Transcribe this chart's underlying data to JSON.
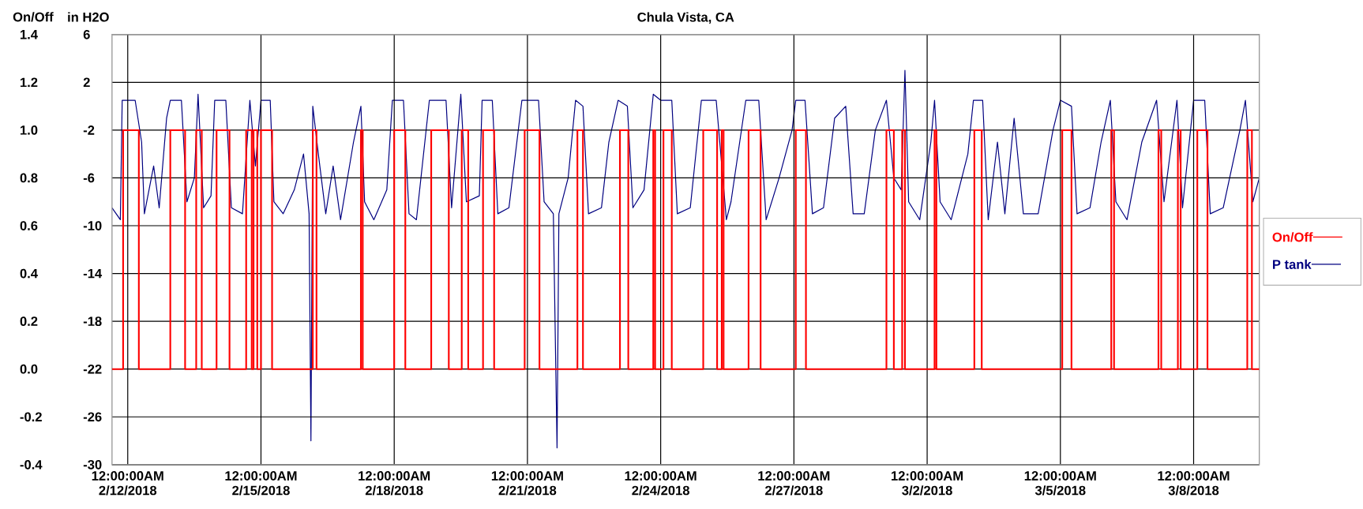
{
  "chart_data": {
    "type": "line",
    "title": "Chula Vista, CA",
    "ylabel": "On/Off",
    "y2label": "in H2O",
    "xlim": [
      "2018-02-11T15:30",
      "2018-03-09T11:30"
    ],
    "xticks": [
      {
        "value": "2018-02-12",
        "label": "12:00:00AM 2/12/2018"
      },
      {
        "value": "2018-02-15",
        "label": "12:00:00AM 2/15/2018"
      },
      {
        "value": "2018-02-18",
        "label": "12:00:00AM 2/18/2018"
      },
      {
        "value": "2018-02-21",
        "label": "12:00:00AM 2/21/2018"
      },
      {
        "value": "2018-02-24",
        "label": "12:00:00AM 2/24/2018"
      },
      {
        "value": "2018-02-27",
        "label": "12:00:00AM 2/27/2018"
      },
      {
        "value": "2018-03-02",
        "label": "12:00:00AM 3/2/2018"
      },
      {
        "value": "2018-03-05",
        "label": "12:00:00AM 3/5/2018"
      },
      {
        "value": "2018-03-08",
        "label": "12:00:00AM 3/8/2018"
      }
    ],
    "ylim": [
      -0.4,
      1.4
    ],
    "yticks": [
      {
        "value": -0.4,
        "label": "-0.4"
      },
      {
        "value": -0.2,
        "label": "-0.2"
      },
      {
        "value": 0,
        "label": "0.0"
      },
      {
        "value": 0.2,
        "label": "0.2"
      },
      {
        "value": 0.4,
        "label": "0.4"
      },
      {
        "value": 0.6,
        "label": "0.6"
      },
      {
        "value": 0.8,
        "label": "0.8"
      },
      {
        "value": 1,
        "label": "1.0"
      },
      {
        "value": 1.2,
        "label": "1.2"
      },
      {
        "value": 1.4,
        "label": "1.4"
      }
    ],
    "y2lim": [
      -30,
      6
    ],
    "y2ticks": [
      -30,
      -26,
      -22,
      -18,
      -14,
      -10,
      -6,
      -2,
      2,
      6
    ],
    "grid": true,
    "legend": "right",
    "series": [
      {
        "name": "On/Off",
        "color": "#ff0000",
        "x": [
          "2018-02-11T15:30",
          "2018-02-11T21:30",
          "2018-02-11T21:30",
          "2018-02-12T06:00",
          "2018-02-12T06:00",
          "2018-02-12T23:00",
          "2018-02-12T23:00",
          "2018-02-13T07:00",
          "2018-02-13T07:00",
          "2018-02-13T13:00",
          "2018-02-13T13:00",
          "2018-02-13T16:00",
          "2018-02-13T16:00",
          "2018-02-14T00:00",
          "2018-02-14T00:00",
          "2018-02-14T07:00",
          "2018-02-14T07:00",
          "2018-02-14T16:00",
          "2018-02-14T16:00",
          "2018-02-14T19:00",
          "2018-02-14T19:00",
          "2018-02-14T20:00",
          "2018-02-14T20:00",
          "2018-02-14T22:00",
          "2018-02-14T22:00",
          "2018-02-15T00:00",
          "2018-02-15T00:00",
          "2018-02-15T06:00",
          "2018-02-15T06:00",
          "2018-02-16T04:00",
          "2018-02-16T04:00",
          "2018-02-16T06:00",
          "2018-02-16T06:00",
          "2018-02-17T06:00",
          "2018-02-17T06:00",
          "2018-02-17T07:00",
          "2018-02-17T07:00",
          "2018-02-18T00:00",
          "2018-02-18T00:00",
          "2018-02-18T06:00",
          "2018-02-18T06:00",
          "2018-02-18T20:00",
          "2018-02-18T20:00",
          "2018-02-19T05:30",
          "2018-02-19T05:30",
          "2018-02-19T12:30",
          "2018-02-19T12:30",
          "2018-02-19T16:00",
          "2018-02-19T16:00",
          "2018-02-20T00:00",
          "2018-02-20T00:00",
          "2018-02-20T06:00",
          "2018-02-20T06:00",
          "2018-02-20T22:30",
          "2018-02-20T22:30",
          "2018-02-21T06:30",
          "2018-02-21T06:30",
          "2018-02-22T03:00",
          "2018-02-22T03:00",
          "2018-02-22T06:00",
          "2018-02-22T06:00",
          "2018-02-23T02:00",
          "2018-02-23T02:00",
          "2018-02-23T06:30",
          "2018-02-23T06:30",
          "2018-02-23T20:00",
          "2018-02-23T20:00",
          "2018-02-23T21:00",
          "2018-02-23T21:00",
          "2018-02-24T01:30",
          "2018-02-24T01:30",
          "2018-02-24T06:00",
          "2018-02-24T06:00",
          "2018-02-24T23:00",
          "2018-02-24T23:00",
          "2018-02-25T06:30",
          "2018-02-25T06:30",
          "2018-02-25T09:00",
          "2018-02-25T09:00",
          "2018-02-25T10:00",
          "2018-02-25T10:00",
          "2018-02-25T23:30",
          "2018-02-25T23:30",
          "2018-02-26T06:00",
          "2018-02-26T06:00",
          "2018-02-27T01:00",
          "2018-02-27T01:00",
          "2018-02-27T06:30",
          "2018-02-27T06:30",
          "2018-03-01T02:00",
          "2018-03-01T02:00",
          "2018-03-01T06:00",
          "2018-03-01T06:00",
          "2018-03-01T10:30",
          "2018-03-01T10:30",
          "2018-03-01T12:00",
          "2018-03-01T12:00",
          "2018-03-02T04:00",
          "2018-03-02T04:00",
          "2018-03-02T05:00",
          "2018-03-02T05:00",
          "2018-03-03T01:30",
          "2018-03-03T01:30",
          "2018-03-03T05:30",
          "2018-03-03T05:30",
          "2018-03-05T01:00",
          "2018-03-05T01:00",
          "2018-03-05T06:00",
          "2018-03-05T06:00",
          "2018-03-06T03:30",
          "2018-03-06T03:30",
          "2018-03-06T05:00",
          "2018-03-06T05:00",
          "2018-03-07T05:00",
          "2018-03-07T05:00",
          "2018-03-07T06:30",
          "2018-03-07T06:30",
          "2018-03-07T15:30",
          "2018-03-07T15:30",
          "2018-03-07T17:00",
          "2018-03-07T17:00",
          "2018-03-08T02:00",
          "2018-03-08T02:00",
          "2018-03-08T07:30",
          "2018-03-08T07:30",
          "2018-03-09T05:00",
          "2018-03-09T05:00",
          "2018-03-09T07:30",
          "2018-03-09T07:30",
          "2018-03-09T11:30"
        ],
        "values": [
          0,
          0,
          1,
          1,
          0,
          0,
          1,
          1,
          0,
          0,
          1,
          1,
          0,
          0,
          1,
          1,
          0,
          0,
          1,
          1,
          0,
          0,
          1,
          1,
          0,
          0,
          1,
          1,
          0,
          0,
          1,
          1,
          0,
          0,
          1,
          1,
          0,
          0,
          1,
          1,
          0,
          0,
          1,
          1,
          0,
          0,
          1,
          1,
          0,
          0,
          1,
          1,
          0,
          0,
          1,
          1,
          0,
          0,
          1,
          1,
          0,
          0,
          1,
          1,
          0,
          0,
          1,
          1,
          0,
          0,
          1,
          1,
          0,
          0,
          1,
          1,
          0,
          0,
          1,
          1,
          0,
          0,
          1,
          1,
          0,
          0,
          1,
          1,
          0,
          0,
          1,
          1,
          0,
          0,
          1,
          1,
          0,
          0,
          1,
          1,
          0,
          0,
          1,
          1,
          0,
          0,
          1,
          1,
          0,
          0,
          1,
          1,
          0,
          0,
          1,
          1,
          0,
          0,
          1,
          1,
          0,
          0,
          1,
          1,
          0,
          0,
          1,
          1,
          0,
          0
        ]
      },
      {
        "name": "P tank",
        "color": "#000080",
        "axis": "y2",
        "x": [
          "2018-02-11T15:30",
          "2018-02-11T20:00",
          "2018-02-11T21:00",
          "2018-02-12T04:00",
          "2018-02-12T07:30",
          "2018-02-12T09:00",
          "2018-02-12T14:00",
          "2018-02-12T17:00",
          "2018-02-12T21:00",
          "2018-02-12T23:00",
          "2018-02-13T05:00",
          "2018-02-13T08:00",
          "2018-02-13T12:00",
          "2018-02-13T14:00",
          "2018-02-13T17:00",
          "2018-02-13T21:00",
          "2018-02-13T23:00",
          "2018-02-14T05:00",
          "2018-02-14T08:00",
          "2018-02-14T14:00",
          "2018-02-14T18:00",
          "2018-02-14T21:00",
          "2018-02-15T00:00",
          "2018-02-15T05:00",
          "2018-02-15T07:00",
          "2018-02-15T12:00",
          "2018-02-15T18:00",
          "2018-02-15T23:00",
          "2018-02-16T02:00",
          "2018-02-16T03:00",
          "2018-02-16T04:00",
          "2018-02-16T07:00",
          "2018-02-16T11:00",
          "2018-02-16T15:00",
          "2018-02-16T19:00",
          "2018-02-17T02:00",
          "2018-02-17T06:00",
          "2018-02-17T08:00",
          "2018-02-17T13:00",
          "2018-02-17T20:00",
          "2018-02-17T23:00",
          "2018-02-18T05:00",
          "2018-02-18T08:00",
          "2018-02-18T12:00",
          "2018-02-18T19:00",
          "2018-02-19T04:00",
          "2018-02-19T07:00",
          "2018-02-19T12:00",
          "2018-02-19T15:00",
          "2018-02-19T22:00",
          "2018-02-19T23:30",
          "2018-02-20T05:00",
          "2018-02-20T08:00",
          "2018-02-20T14:00",
          "2018-02-20T21:00",
          "2018-02-21T06:00",
          "2018-02-21T09:00",
          "2018-02-21T14:00",
          "2018-02-21T16:00",
          "2018-02-21T17:00",
          "2018-02-21T22:00",
          "2018-02-22T02:00",
          "2018-02-22T06:00",
          "2018-02-22T09:00",
          "2018-02-22T16:00",
          "2018-02-22T20:00",
          "2018-02-23T01:00",
          "2018-02-23T06:00",
          "2018-02-23T09:00",
          "2018-02-23T15:00",
          "2018-02-23T20:00",
          "2018-02-24T00:00",
          "2018-02-24T06:00",
          "2018-02-24T09:00",
          "2018-02-24T16:00",
          "2018-02-24T22:00",
          "2018-02-25T06:00",
          "2018-02-25T11:30",
          "2018-02-25T14:00",
          "2018-02-25T22:00",
          "2018-02-26T05:00",
          "2018-02-26T09:00",
          "2018-02-26T16:00",
          "2018-02-26T23:00",
          "2018-02-27T01:00",
          "2018-02-27T06:00",
          "2018-02-27T10:00",
          "2018-02-27T16:00",
          "2018-02-27T22:00",
          "2018-02-28T04:00",
          "2018-02-28T08:00",
          "2018-02-28T14:00",
          "2018-02-28T20:00",
          "2018-03-01T02:00",
          "2018-03-01T06:00",
          "2018-03-01T10:00",
          "2018-03-01T12:00",
          "2018-03-01T14:00",
          "2018-03-01T20:00",
          "2018-03-02T02:00",
          "2018-03-02T04:00",
          "2018-03-02T07:00",
          "2018-03-02T13:00",
          "2018-03-02T22:00",
          "2018-03-03T01:00",
          "2018-03-03T06:00",
          "2018-03-03T09:00",
          "2018-03-03T14:00",
          "2018-03-03T18:00",
          "2018-03-03T23:00",
          "2018-03-04T04:00",
          "2018-03-04T12:00",
          "2018-03-04T20:00",
          "2018-03-05T00:00",
          "2018-03-05T06:00",
          "2018-03-05T09:00",
          "2018-03-05T16:00",
          "2018-03-05T22:00",
          "2018-03-06T03:00",
          "2018-03-06T06:00",
          "2018-03-06T12:00",
          "2018-03-06T20:00",
          "2018-03-07T04:00",
          "2018-03-07T08:00",
          "2018-03-07T15:00",
          "2018-03-07T18:00",
          "2018-03-08T00:00",
          "2018-03-08T06:00",
          "2018-03-08T09:00",
          "2018-03-08T16:00",
          "2018-03-09T01:00",
          "2018-03-09T04:00",
          "2018-03-09T08:00",
          "2018-03-09T11:30"
        ],
        "values": [
          -8.5,
          -9.5,
          0.5,
          0.5,
          -3,
          -9,
          -5,
          -8.5,
          -1,
          0.5,
          0.5,
          -8,
          -6,
          1,
          -8.5,
          -7.5,
          0.5,
          0.5,
          -8.5,
          -9,
          0.5,
          -5,
          0.5,
          0.5,
          -8,
          -9,
          -7,
          -4,
          -9,
          -28,
          0,
          -4,
          -9,
          -5,
          -9.5,
          -3,
          0,
          -8,
          -9.5,
          -7,
          0.5,
          0.5,
          -9,
          -9.5,
          0.5,
          0.5,
          -8.5,
          1,
          -8,
          -7.5,
          0.5,
          0.5,
          -9,
          -8.5,
          0.5,
          0.5,
          -8,
          -9,
          -28.6,
          -9,
          -6,
          0.5,
          0,
          -9,
          -8.5,
          -3,
          0.5,
          0,
          -8.5,
          -7,
          1,
          0.5,
          0.5,
          -9,
          -8.5,
          0.5,
          0.5,
          -9.5,
          -8,
          0.5,
          0.5,
          -9.5,
          -6,
          -2,
          0.5,
          0.5,
          -9,
          -8.5,
          -1,
          0,
          -9,
          -9,
          -2,
          0.5,
          -6,
          -7,
          3,
          -8,
          -9.5,
          -3,
          0.5,
          -8,
          -9.5,
          -4,
          0.5,
          0.5,
          -9.5,
          -3,
          -9,
          -1,
          -9,
          -9,
          -2,
          0.5,
          0,
          -9,
          -8.5,
          -3,
          0.5,
          -8,
          -9.5,
          -3,
          0.5,
          -8,
          0.5,
          -8.5,
          0.5,
          0.5,
          -9,
          -8.5,
          -2,
          0.5,
          -8,
          -6
        ]
      }
    ]
  }
}
